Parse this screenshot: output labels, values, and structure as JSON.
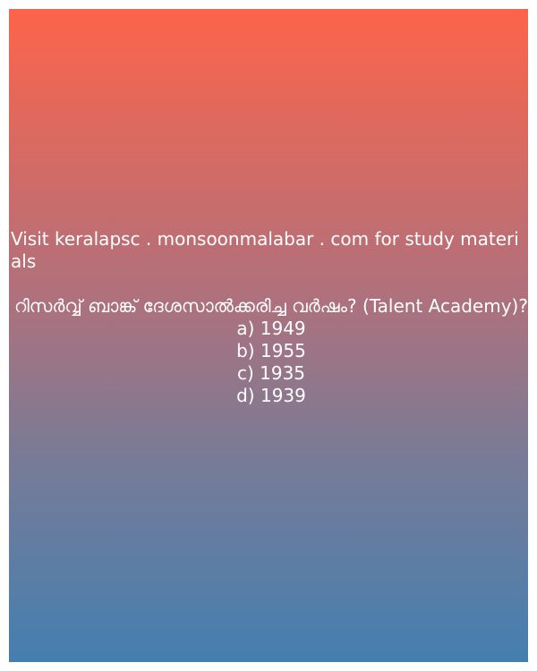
{
  "site_line": "Visit keralapsc . monsoonmalabar . com for study materials",
  "question": "റിസർവ്വ് ബാങ്ക് ദേശസാൽക്കരിച്ച വർഷം? (Talent Academy)?",
  "options": [
    "a) 1949",
    "b) 1955",
    "c) 1935",
    "d) 1939"
  ],
  "colors": {
    "gradient_top": "#fd644a",
    "gradient_bottom": "#447fb0",
    "text": "#ffffff"
  }
}
